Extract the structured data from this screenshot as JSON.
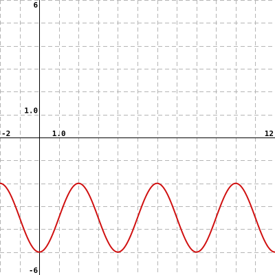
{
  "chart_data": {
    "type": "line",
    "xlim": [
      -2,
      12
    ],
    "ylim": [
      -6,
      6
    ],
    "grid": true,
    "grid_step": [
      1,
      1
    ],
    "x_tick_labels": [
      {
        "value": -2,
        "text": "-2"
      },
      {
        "value": 1,
        "text": "1.0"
      },
      {
        "value": 12,
        "text": "12"
      }
    ],
    "y_tick_labels": [
      {
        "value": 6,
        "text": "6"
      },
      {
        "value": 1,
        "text": "1.0"
      },
      {
        "value": -6,
        "text": "-6"
      }
    ],
    "series": [
      {
        "color": "#d01010",
        "function": {
          "kind": "cosine",
          "amplitude": 1.5,
          "midline": -3.5,
          "period": 4,
          "phase": 2
        },
        "x": [
          -2,
          -1.5,
          -1,
          -0.5,
          0,
          0.5,
          1,
          1.5,
          2,
          2.5,
          3,
          3.5,
          4,
          4.5,
          5,
          5.5,
          6,
          6.5,
          7,
          7.5,
          8,
          8.5,
          9,
          9.5,
          10,
          10.5,
          11,
          11.5,
          12
        ],
        "y": [
          -2,
          -2.44,
          -3.5,
          -4.56,
          -5,
          -4.56,
          -3.5,
          -2.44,
          -2,
          -2.44,
          -3.5,
          -4.56,
          -5,
          -4.56,
          -3.5,
          -2.44,
          -2,
          -2.44,
          -3.5,
          -4.56,
          -5,
          -4.56,
          -3.5,
          -2.44,
          -2,
          -2.44,
          -3.5,
          -4.56,
          -5
        ]
      }
    ]
  }
}
